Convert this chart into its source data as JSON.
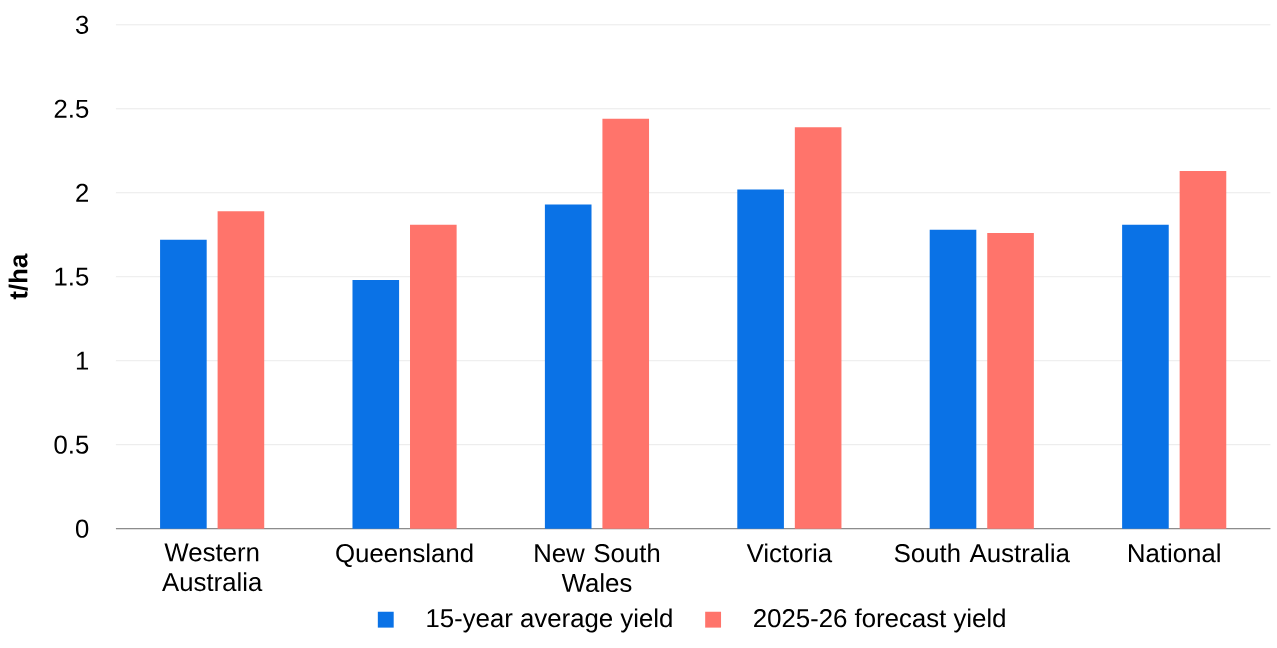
{
  "chart_data": {
    "type": "bar",
    "ylabel": "t/ha",
    "categories": [
      "Western Australia",
      "Queensland",
      "New South Wales",
      "Victoria",
      "South Australia",
      "National"
    ],
    "series": [
      {
        "name": "15-year average yield",
        "color": "#0a72e6",
        "values": [
          1.72,
          1.48,
          1.93,
          2.02,
          1.78,
          1.81
        ]
      },
      {
        "name": "2025-26 forecast yield",
        "color": "#ff746b",
        "values": [
          1.89,
          1.81,
          2.44,
          2.39,
          1.76,
          2.13
        ]
      }
    ],
    "ylim": [
      0,
      3
    ],
    "yticks": [
      0,
      0.5,
      1,
      1.5,
      2,
      2.5,
      3
    ],
    "grid": "y",
    "legend": "bottom"
  }
}
